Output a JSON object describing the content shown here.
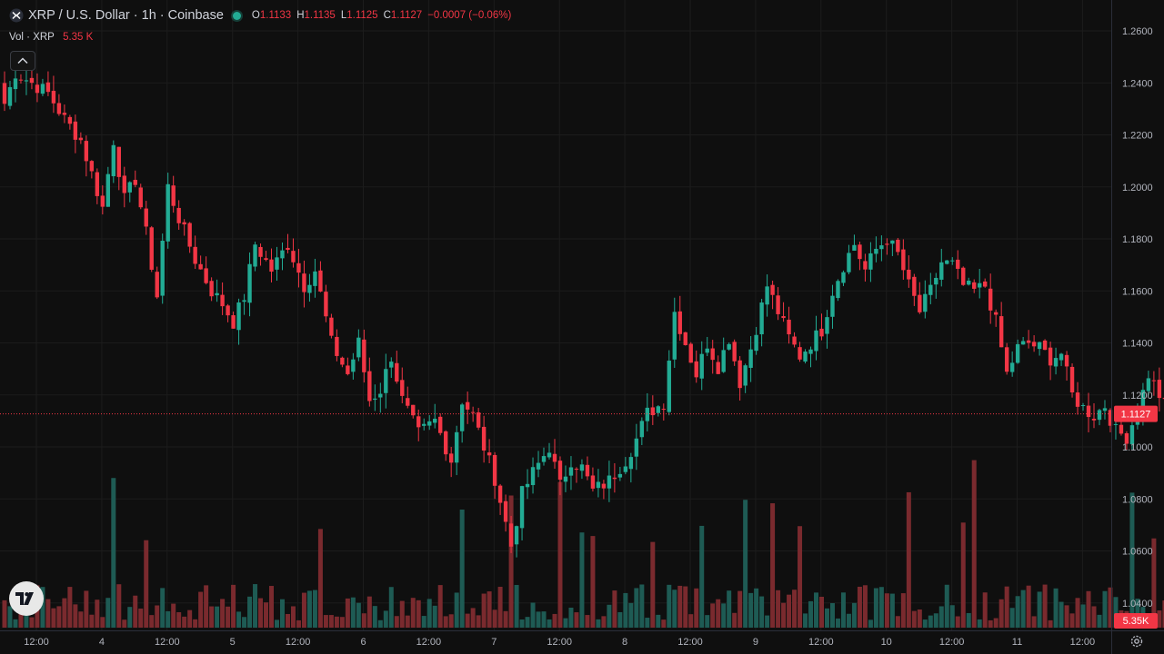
{
  "header": {
    "symbol_title": "XRP / U.S. Dollar · 1h · Coinbase",
    "ohlc": [
      {
        "key": "O",
        "value": "1.1133"
      },
      {
        "key": "H",
        "value": "1.1135"
      },
      {
        "key": "L",
        "value": "1.1125"
      },
      {
        "key": "C",
        "value": "1.1127"
      }
    ],
    "change": "−0.0007 (−0.06%)",
    "volume_label": "Vol · XRP",
    "volume_value": "5.35 K"
  },
  "colors": {
    "background": "#0f0f0f",
    "up": "#22ab94",
    "down": "#f23645",
    "up_volume": "#1e5b54",
    "down_volume": "#7a2a2e",
    "text": "#d1d4dc"
  },
  "icons": [
    "symbol-icon",
    "live-status-icon",
    "collapse-chevron-icon",
    "tradingview-logo-icon",
    "settings-gear-icon"
  ],
  "chart_data": {
    "type": "candlestick",
    "symbol": "XRP / U.S. Dollar",
    "interval": "1h",
    "exchange": "Coinbase",
    "ylim": [
      1.025,
      1.265
    ],
    "y_ticks": [
      "1.2600",
      "1.2400",
      "1.2200",
      "1.2000",
      "1.1800",
      "1.1600",
      "1.1400",
      "1.1200",
      "1.1000",
      "1.0800",
      "1.0600",
      "1.0400"
    ],
    "x_ticks": [
      "12:00",
      "4",
      "12:00",
      "5",
      "12:00",
      "6",
      "12:00",
      "7",
      "12:00",
      "8",
      "12:00",
      "9",
      "12:00",
      "10",
      "12:00",
      "11",
      "12:00"
    ],
    "last_price": "1.1127",
    "last_volume": "5.35K",
    "price_path": [
      [
        0,
        1.232
      ],
      [
        2,
        1.244
      ],
      [
        5,
        1.24
      ],
      [
        8,
        1.236
      ],
      [
        11,
        1.226
      ],
      [
        14,
        1.218
      ],
      [
        16,
        1.205
      ],
      [
        18,
        1.192
      ],
      [
        20,
        1.218
      ],
      [
        22,
        1.195
      ],
      [
        24,
        1.203
      ],
      [
        26,
        1.182
      ],
      [
        28,
        1.158
      ],
      [
        30,
        1.2
      ],
      [
        32,
        1.188
      ],
      [
        35,
        1.172
      ],
      [
        38,
        1.16
      ],
      [
        40,
        1.155
      ],
      [
        42,
        1.148
      ],
      [
        44,
        1.158
      ],
      [
        46,
        1.178
      ],
      [
        49,
        1.168
      ],
      [
        52,
        1.178
      ],
      [
        55,
        1.162
      ],
      [
        57,
        1.168
      ],
      [
        60,
        1.14
      ],
      [
        63,
        1.128
      ],
      [
        65,
        1.14
      ],
      [
        67,
        1.118
      ],
      [
        69,
        1.122
      ],
      [
        71,
        1.135
      ],
      [
        73,
        1.118
      ],
      [
        76,
        1.105
      ],
      [
        79,
        1.11
      ],
      [
        82,
        1.095
      ],
      [
        84,
        1.118
      ],
      [
        86,
        1.112
      ],
      [
        88,
        1.1
      ],
      [
        90,
        1.088
      ],
      [
        93,
        1.062
      ],
      [
        95,
        1.082
      ],
      [
        97,
        1.09
      ],
      [
        100,
        1.1
      ],
      [
        102,
        1.085
      ],
      [
        104,
        1.095
      ],
      [
        106,
        1.092
      ],
      [
        108,
        1.083
      ],
      [
        111,
        1.087
      ],
      [
        114,
        1.095
      ],
      [
        116,
        1.103
      ],
      [
        118,
        1.113
      ],
      [
        121,
        1.117
      ],
      [
        123,
        1.152
      ],
      [
        125,
        1.14
      ],
      [
        127,
        1.128
      ],
      [
        129,
        1.14
      ],
      [
        131,
        1.131
      ],
      [
        133,
        1.142
      ],
      [
        135,
        1.125
      ],
      [
        137,
        1.138
      ],
      [
        140,
        1.162
      ],
      [
        142,
        1.152
      ],
      [
        144,
        1.142
      ],
      [
        146,
        1.135
      ],
      [
        148,
        1.14
      ],
      [
        150,
        1.145
      ],
      [
        152,
        1.16
      ],
      [
        154,
        1.17
      ],
      [
        156,
        1.178
      ],
      [
        158,
        1.168
      ],
      [
        160,
        1.176
      ],
      [
        162,
        1.18
      ],
      [
        164,
        1.174
      ],
      [
        166,
        1.162
      ],
      [
        168,
        1.152
      ],
      [
        170,
        1.16
      ],
      [
        172,
        1.171
      ],
      [
        174,
        1.17
      ],
      [
        176,
        1.162
      ],
      [
        178,
        1.16
      ],
      [
        180,
        1.162
      ],
      [
        182,
        1.148
      ],
      [
        184,
        1.128
      ],
      [
        186,
        1.138
      ],
      [
        188,
        1.14
      ],
      [
        190,
        1.138
      ],
      [
        192,
        1.134
      ],
      [
        194,
        1.136
      ],
      [
        196,
        1.12
      ],
      [
        198,
        1.115
      ],
      [
        200,
        1.112
      ],
      [
        202,
        1.116
      ],
      [
        204,
        1.106
      ],
      [
        206,
        1.104
      ],
      [
        208,
        1.114
      ],
      [
        210,
        1.128
      ],
      [
        212,
        1.12
      ],
      [
        214,
        1.112
      ],
      [
        216,
        1.105
      ],
      [
        218,
        1.095
      ],
      [
        220,
        1.092
      ],
      [
        222,
        1.098
      ],
      [
        224,
        1.108
      ],
      [
        226,
        1.113
      ],
      [
        228,
        1.117
      ],
      [
        230,
        1.118
      ],
      [
        231,
        1.1127
      ]
    ]
  }
}
